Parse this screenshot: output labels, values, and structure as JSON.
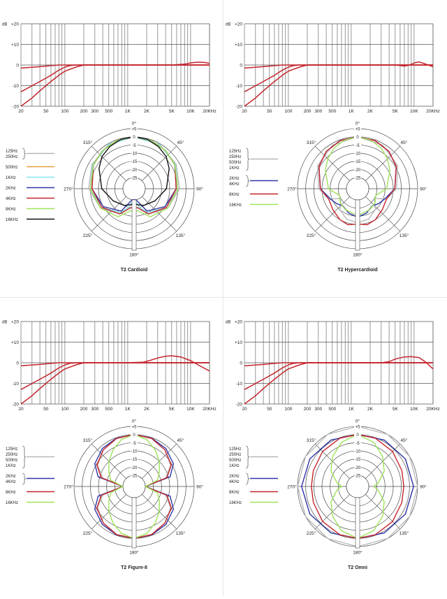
{
  "colors": {
    "grid": "#555555",
    "polar_ring": "#4a4a4a",
    "gray": "#b8b8b8",
    "orange": "#e8a040",
    "cyan": "#86e3ee",
    "blue": "#2e35a6",
    "red": "#c4242c",
    "green": "#9ee35a",
    "black": "#111111"
  },
  "freq_axis": {
    "ticks": [
      "20",
      "50",
      "100",
      "200",
      "300",
      "500",
      "1K",
      "2K",
      "5K",
      "10K",
      "20KHz"
    ],
    "tick_values": [
      20,
      50,
      100,
      200,
      300,
      500,
      1000,
      2000,
      5000,
      10000,
      20000
    ]
  },
  "db_axis": {
    "unit": "dB",
    "ticks": [
      "+20",
      "+10",
      "0",
      "-10",
      "-20"
    ],
    "tick_values": [
      20,
      10,
      0,
      -10,
      -20
    ]
  },
  "polar_axis": {
    "angle_labels": [
      {
        "deg": 0,
        "text": "0°"
      },
      {
        "deg": 45,
        "text": "45°"
      },
      {
        "deg": 90,
        "text": "90°"
      },
      {
        "deg": 135,
        "text": "135°"
      },
      {
        "deg": 180,
        "text": "180°"
      },
      {
        "deg": 225,
        "text": "225°"
      },
      {
        "deg": 270,
        "text": "270°"
      },
      {
        "deg": 315,
        "text": "315°"
      }
    ],
    "ring_labels": [
      "+5",
      "0",
      "-5",
      "-10",
      "-15",
      "-20",
      "-25"
    ],
    "ring_values": [
      5,
      0,
      -5,
      -10,
      -15,
      -20,
      -25
    ]
  },
  "chart_data": [
    {
      "type": "line",
      "title": "T2 Cardioid",
      "xlabel": "",
      "ylabel": "dB",
      "xscale": "log",
      "xlim": [
        20,
        20000
      ],
      "ylim": [
        -20,
        20
      ],
      "series": [
        {
          "color": "red",
          "x": [
            20,
            40,
            60,
            80,
            100,
            150,
            200,
            20000
          ],
          "y": [
            -1.5,
            -0.8,
            -0.3,
            0,
            0,
            0,
            0,
            0
          ]
        },
        {
          "color": "red",
          "x": [
            20,
            40,
            60,
            80,
            100,
            120,
            150,
            200,
            20000
          ],
          "y": [
            -13,
            -8,
            -5,
            -2.5,
            -1,
            -0.3,
            0,
            0,
            0
          ]
        },
        {
          "color": "red",
          "x": [
            20,
            30,
            40,
            60,
            80,
            100,
            150,
            200,
            300,
            20000
          ],
          "y": [
            -20,
            -16,
            -12.5,
            -8,
            -5,
            -3,
            -1,
            0,
            0,
            0
          ]
        },
        {
          "color": "red",
          "x": [
            200,
            1000,
            5000,
            8000,
            10000,
            12000,
            14000,
            17000,
            20000
          ],
          "y": [
            0,
            0,
            0,
            0.4,
            1,
            1.3,
            1.4,
            1.2,
            0.8
          ]
        }
      ]
    },
    {
      "type": "polar",
      "title": "T2 Cardioid",
      "rlim": [
        -25,
        5
      ],
      "legend": [
        {
          "label": "125Hz\n250Hz",
          "color": "gray",
          "bracket": true
        },
        {
          "label": "500Hz",
          "color": "orange"
        },
        {
          "label": "1KHz",
          "color": "cyan"
        },
        {
          "label": "2KHz",
          "color": "blue"
        },
        {
          "label": "4KHz",
          "color": "red"
        },
        {
          "label": "8KHz",
          "color": "green"
        },
        {
          "label": "16KHz",
          "color": "black"
        }
      ],
      "series": [
        {
          "color": "gray",
          "theta": [
            0,
            30,
            60,
            90,
            120,
            150,
            165,
            180
          ],
          "r": [
            0,
            -0.5,
            -2,
            -4,
            -8,
            -14,
            -20,
            -25
          ]
        },
        {
          "color": "orange",
          "theta": [
            0,
            30,
            60,
            90,
            120,
            150,
            165,
            175
          ],
          "r": [
            0,
            -0.6,
            -2.5,
            -5,
            -9,
            -15,
            -20,
            -25
          ]
        },
        {
          "color": "cyan",
          "theta": [
            0,
            30,
            60,
            90,
            120,
            150,
            165,
            175
          ],
          "r": [
            0,
            -0.6,
            -2.5,
            -5,
            -9,
            -15,
            -20,
            -25
          ]
        },
        {
          "color": "blue",
          "theta": [
            0,
            20,
            40,
            60,
            90,
            120,
            150,
            170
          ],
          "r": [
            0,
            -0.5,
            -1.5,
            -3,
            -6,
            -10,
            -16,
            -25
          ]
        },
        {
          "color": "red",
          "theta": [
            0,
            20,
            40,
            60,
            90,
            120,
            150,
            170
          ],
          "r": [
            0,
            -0.5,
            -1.5,
            -3,
            -6,
            -9,
            -14,
            -20
          ]
        },
        {
          "color": "green",
          "theta": [
            0,
            20,
            40,
            60,
            90,
            120,
            150,
            170
          ],
          "r": [
            0,
            -0.5,
            -1.5,
            -3,
            -5,
            -8,
            -12,
            -18
          ]
        },
        {
          "color": "black",
          "theta": [
            0,
            15,
            30,
            45,
            60,
            90,
            120,
            150,
            170
          ],
          "r": [
            0,
            -0.5,
            -2,
            -4,
            -7,
            -12,
            -17,
            -20,
            -22
          ]
        }
      ]
    },
    {
      "type": "line",
      "title": "T2 Hypercardioid",
      "xlabel": "",
      "ylabel": "dB",
      "xscale": "log",
      "xlim": [
        20,
        20000
      ],
      "ylim": [
        -20,
        20
      ],
      "series": [
        {
          "color": "red",
          "x": [
            20,
            40,
            60,
            80,
            100,
            150,
            200,
            20000
          ],
          "y": [
            -1.5,
            -0.8,
            -0.3,
            0,
            0,
            0,
            0,
            0
          ]
        },
        {
          "color": "red",
          "x": [
            20,
            40,
            60,
            80,
            100,
            120,
            150,
            200,
            20000
          ],
          "y": [
            -13,
            -8,
            -5,
            -2.5,
            -1,
            -0.3,
            0,
            0,
            0
          ]
        },
        {
          "color": "red",
          "x": [
            20,
            30,
            40,
            60,
            80,
            100,
            150,
            200,
            300,
            20000
          ],
          "y": [
            -20,
            -16,
            -12.5,
            -8,
            -5,
            -3,
            -1,
            0,
            0,
            0
          ]
        },
        {
          "color": "red",
          "x": [
            200,
            1000,
            5000,
            7000,
            8500,
            10000,
            12000,
            15000,
            20000
          ],
          "y": [
            0,
            0,
            0,
            -0.5,
            0,
            1,
            1.5,
            0.5,
            -0.8
          ]
        }
      ]
    },
    {
      "type": "polar",
      "title": "T2  Hypercardioid",
      "rlim": [
        -25,
        5
      ],
      "legend": [
        {
          "label": "125Hz\n250Hz\n500Hz\n1KHz",
          "color": "gray",
          "bracket": true
        },
        {
          "label": "2KHz\n4KHz",
          "color": "blue",
          "bracket": true
        },
        {
          "label": "8KHz",
          "color": "red"
        },
        {
          "label": "16KHz",
          "color": "green"
        }
      ],
      "series": [
        {
          "color": "gray",
          "theta": [
            0,
            30,
            60,
            90,
            110,
            120,
            140,
            160,
            180
          ],
          "r": [
            0,
            -1,
            -3.5,
            -8,
            -13,
            -20,
            -15,
            -12,
            -11
          ]
        },
        {
          "color": "blue",
          "theta": [
            0,
            20,
            40,
            60,
            90,
            110,
            125,
            140,
            160,
            175
          ],
          "r": [
            0,
            -0.5,
            -2,
            -4.5,
            -9,
            -14,
            -16,
            -18,
            -16,
            -15
          ]
        },
        {
          "color": "red",
          "theta": [
            0,
            20,
            40,
            60,
            90,
            110,
            130,
            150,
            165,
            175
          ],
          "r": [
            0,
            -0.5,
            -2,
            -4.5,
            -9,
            -13,
            -12,
            -10,
            -9,
            -10
          ]
        },
        {
          "color": "green",
          "theta": [
            0,
            15,
            30,
            45,
            60,
            90,
            110,
            130,
            150,
            175
          ],
          "r": [
            0,
            -1,
            -3,
            -6,
            -9,
            -14,
            -20,
            -18,
            -17,
            -16
          ]
        }
      ]
    },
    {
      "type": "line",
      "title": "T2 Figure-8",
      "xlabel": "",
      "ylabel": "dB",
      "xscale": "log",
      "xlim": [
        20,
        20000
      ],
      "ylim": [
        -20,
        20
      ],
      "series": [
        {
          "color": "red",
          "x": [
            20,
            40,
            60,
            80,
            100,
            150,
            200,
            20000
          ],
          "y": [
            -1.5,
            -0.8,
            -0.3,
            0,
            0,
            0,
            0,
            0
          ]
        },
        {
          "color": "red",
          "x": [
            20,
            40,
            60,
            80,
            100,
            120,
            150,
            200,
            20000
          ],
          "y": [
            -13,
            -8,
            -5,
            -2.5,
            -1,
            -0.3,
            0,
            0,
            0
          ]
        },
        {
          "color": "red",
          "x": [
            20,
            30,
            40,
            60,
            80,
            100,
            150,
            200,
            300,
            20000
          ],
          "y": [
            -20,
            -16,
            -12.5,
            -8,
            -5,
            -3,
            -1,
            0,
            0,
            0
          ]
        },
        {
          "color": "red",
          "x": [
            200,
            1000,
            1800,
            2200,
            3000,
            4000,
            5000,
            7000,
            10000,
            14000,
            20000
          ],
          "y": [
            0,
            0,
            0.3,
            1,
            2.3,
            3.2,
            3.4,
            2.8,
            1,
            -1.5,
            -4
          ]
        }
      ]
    },
    {
      "type": "polar",
      "title": "T2 Figure-8",
      "rlim": [
        -25,
        5
      ],
      "legend": [
        {
          "label": "125Hz\n250Hz\n500Hz\n1KHz",
          "color": "gray",
          "bracket": true
        },
        {
          "label": "2KHz\n4KHz",
          "color": "blue",
          "bracket": true
        },
        {
          "label": "8KHz",
          "color": "red"
        },
        {
          "label": "16KHz",
          "color": "green"
        }
      ],
      "series": [
        {
          "color": "gray",
          "theta": [
            0,
            20,
            40,
            60,
            75,
            90,
            105,
            120,
            140,
            160,
            180
          ],
          "r": [
            0,
            -0.5,
            -2.5,
            -6,
            -12,
            -25,
            -12,
            -6,
            -2.5,
            -0.5,
            0
          ]
        },
        {
          "color": "blue",
          "theta": [
            0,
            20,
            40,
            60,
            75,
            90,
            105,
            120,
            140,
            160,
            180
          ],
          "r": [
            0,
            -0.3,
            -1.5,
            -4,
            -9,
            -25,
            -9,
            -4,
            -1.5,
            -0.3,
            0
          ]
        },
        {
          "color": "red",
          "theta": [
            0,
            20,
            40,
            60,
            75,
            90,
            105,
            120,
            140,
            160,
            180
          ],
          "r": [
            0,
            -0.5,
            -2.5,
            -5.5,
            -11,
            -25,
            -11,
            -5.5,
            -2.5,
            -0.5,
            0
          ]
        },
        {
          "color": "green",
          "theta": [
            0,
            15,
            30,
            45,
            60,
            75,
            90,
            105,
            120,
            135,
            150,
            165,
            180
          ],
          "r": [
            0,
            -2,
            -6,
            -10,
            -14,
            -17,
            -25,
            -17,
            -14,
            -10,
            -6,
            -2,
            0
          ]
        }
      ]
    },
    {
      "type": "line",
      "title": "T2 Omni",
      "xlabel": "",
      "ylabel": "dB",
      "xscale": "log",
      "xlim": [
        20,
        20000
      ],
      "ylim": [
        -20,
        20
      ],
      "series": [
        {
          "color": "red",
          "x": [
            20,
            40,
            60,
            80,
            100,
            150,
            200,
            20000
          ],
          "y": [
            -1.5,
            -0.8,
            -0.3,
            0,
            0,
            0,
            0,
            0
          ]
        },
        {
          "color": "red",
          "x": [
            20,
            40,
            60,
            80,
            100,
            120,
            150,
            200,
            20000
          ],
          "y": [
            -13,
            -8,
            -5,
            -2.5,
            -1,
            -0.3,
            0,
            0,
            0
          ]
        },
        {
          "color": "red",
          "x": [
            20,
            30,
            40,
            60,
            80,
            100,
            150,
            200,
            300,
            20000
          ],
          "y": [
            -20,
            -16,
            -12.5,
            -8,
            -5,
            -3,
            -1,
            0,
            0,
            0
          ]
        },
        {
          "color": "red",
          "x": [
            200,
            1000,
            3000,
            4000,
            5000,
            7000,
            9000,
            12000,
            15000,
            20000
          ],
          "y": [
            0,
            0,
            0,
            0.5,
            1.8,
            2.8,
            3,
            2.5,
            0.5,
            -3
          ]
        }
      ]
    },
    {
      "type": "polar",
      "title": "T2 Omni",
      "rlim": [
        -25,
        5
      ],
      "legend": [
        {
          "label": "125Hz\n250Hz\n500Hz\n1KHz",
          "color": "gray",
          "bracket": true
        },
        {
          "label": "2KHz\n4KHz",
          "color": "blue",
          "bracket": true
        },
        {
          "label": "8KHz",
          "color": "red"
        },
        {
          "label": "16KHz",
          "color": "green"
        }
      ],
      "series": [
        {
          "color": "gray",
          "theta": [
            0,
            30,
            60,
            90,
            120,
            150,
            180
          ],
          "r": [
            5,
            5,
            5,
            5,
            5,
            5,
            5
          ]
        },
        {
          "color": "blue",
          "theta": [
            0,
            30,
            60,
            90,
            120,
            150,
            180
          ],
          "r": [
            0,
            1,
            2,
            2.5,
            2,
            1,
            0
          ]
        },
        {
          "color": "red",
          "theta": [
            0,
            20,
            45,
            70,
            90,
            110,
            135,
            160,
            180
          ],
          "r": [
            0,
            -0.3,
            -1.5,
            -3,
            -3.5,
            -3,
            -1.5,
            -0.3,
            0
          ]
        },
        {
          "color": "green",
          "theta": [
            0,
            20,
            40,
            60,
            80,
            90,
            100,
            120,
            140,
            160,
            180
          ],
          "r": [
            0,
            -3,
            -8,
            -13,
            -19,
            -22,
            -19,
            -13,
            -8,
            -3,
            0
          ]
        }
      ]
    }
  ]
}
